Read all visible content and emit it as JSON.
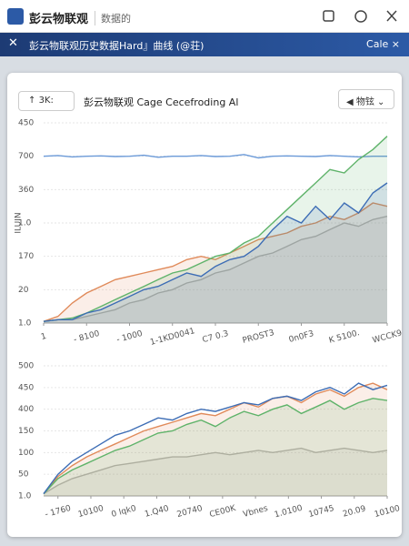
{
  "topbar": {
    "app_title": "彭云物联观",
    "tab": "数据的"
  },
  "header": {
    "title": "彭云物联观历史数据Hard』曲线 (@荘)",
    "action": "Cale ×"
  },
  "toolbar": {
    "button": "3K:",
    "title": "彭云物联观 Cage Cecefroding Al",
    "dropdown": "物铉"
  },
  "charts": [
    {
      "type": "line",
      "y_label": "ILUIN",
      "ylim": [
        0,
        6
      ],
      "xlim": [
        0,
        24
      ],
      "yticks": [
        {
          "value": 0,
          "label": "1.0"
        },
        {
          "value": 1,
          "label": "20"
        },
        {
          "value": 2,
          "label": "170"
        },
        {
          "value": 3,
          "label": "1.0"
        },
        {
          "value": 4,
          "label": "360"
        },
        {
          "value": 5,
          "label": "700"
        },
        {
          "value": 6,
          "label": "450"
        }
      ],
      "xticks": [
        {
          "value": 0,
          "label": "1"
        },
        {
          "value": 3,
          "label": "- 8100"
        },
        {
          "value": 6,
          "label": "- 1000"
        },
        {
          "value": 9,
          "label": "1-1KD0041"
        },
        {
          "value": 12,
          "label": "C7 0.3"
        },
        {
          "value": 15,
          "label": "PROST3"
        },
        {
          "value": 18,
          "label": "0n0F3"
        },
        {
          "value": 21,
          "label": "K 5100."
        },
        {
          "value": 24,
          "label": "WCCK9"
        }
      ],
      "x": [
        0,
        1,
        2,
        3,
        4,
        5,
        6,
        7,
        8,
        9,
        10,
        11,
        12,
        13,
        14,
        15,
        16,
        17,
        18,
        19,
        20,
        21,
        22,
        23,
        24
      ],
      "series": [
        {
          "color": "#6b9ad8",
          "area": false,
          "values": [
            5.0,
            5.02,
            4.98,
            5.0,
            5.01,
            4.99,
            5.0,
            5.03,
            4.97,
            5.0,
            5.0,
            5.02,
            4.99,
            5.0,
            5.05,
            4.95,
            5.0,
            5.01,
            5.0,
            4.99,
            5.02,
            5.0,
            4.98,
            5.0,
            5.0
          ]
        },
        {
          "color": "#b5b5b5",
          "area": true,
          "values": [
            0.05,
            0.1,
            0.1,
            0.2,
            0.3,
            0.4,
            0.6,
            0.7,
            0.9,
            1.0,
            1.2,
            1.3,
            1.5,
            1.6,
            1.8,
            2.0,
            2.1,
            2.3,
            2.5,
            2.6,
            2.8,
            3.0,
            2.9,
            3.1,
            3.2
          ]
        },
        {
          "color": "#e08a5a",
          "area": true,
          "values": [
            0.05,
            0.2,
            0.6,
            0.9,
            1.1,
            1.3,
            1.4,
            1.5,
            1.6,
            1.7,
            1.9,
            2.0,
            1.9,
            2.1,
            2.3,
            2.5,
            2.6,
            2.7,
            2.9,
            3.0,
            3.2,
            3.1,
            3.3,
            3.6,
            3.5
          ]
        },
        {
          "color": "#5fb36a",
          "area": true,
          "values": [
            0.05,
            0.1,
            0.15,
            0.3,
            0.5,
            0.7,
            0.9,
            1.1,
            1.3,
            1.5,
            1.6,
            1.8,
            2.0,
            2.1,
            2.4,
            2.6,
            3.0,
            3.4,
            3.8,
            4.2,
            4.6,
            4.5,
            4.9,
            5.2,
            5.6
          ]
        },
        {
          "color": "#3d6db5",
          "area": true,
          "values": [
            0.05,
            0.1,
            0.1,
            0.3,
            0.4,
            0.6,
            0.8,
            1.0,
            1.1,
            1.3,
            1.5,
            1.4,
            1.7,
            1.9,
            2.0,
            2.3,
            2.8,
            3.2,
            3.0,
            3.5,
            3.1,
            3.6,
            3.3,
            3.9,
            4.2
          ]
        }
      ]
    },
    {
      "type": "line",
      "ylim": [
        0,
        6
      ],
      "xlim": [
        0,
        24
      ],
      "yticks": [
        {
          "value": 0,
          "label": "1.0"
        },
        {
          "value": 1,
          "label": "50"
        },
        {
          "value": 2,
          "label": "100"
        },
        {
          "value": 3,
          "label": "150"
        },
        {
          "value": 4,
          "label": "400"
        },
        {
          "value": 5,
          "label": "450"
        },
        {
          "value": 6,
          "label": "500"
        }
      ],
      "xticks": [
        {
          "value": 1,
          "label": "- 1760"
        },
        {
          "value": 3.3,
          "label": "10100"
        },
        {
          "value": 5.6,
          "label": "0 lqk0"
        },
        {
          "value": 7.9,
          "label": "1.Q40"
        },
        {
          "value": 10.2,
          "label": "20740"
        },
        {
          "value": 12.5,
          "label": "CE00K"
        },
        {
          "value": 14.8,
          "label": "Vbnes"
        },
        {
          "value": 17.1,
          "label": "1.0100"
        },
        {
          "value": 19.4,
          "label": "10745"
        },
        {
          "value": 21.7,
          "label": "20.09"
        },
        {
          "value": 24,
          "label": "10100"
        }
      ],
      "x": [
        0,
        1,
        2,
        3,
        4,
        5,
        6,
        7,
        8,
        9,
        10,
        11,
        12,
        13,
        14,
        15,
        16,
        17,
        18,
        19,
        20,
        21,
        22,
        23,
        24
      ],
      "series": [
        {
          "color": "#b5b5b5",
          "area": true,
          "values": [
            0.1,
            0.5,
            0.8,
            1.0,
            1.2,
            1.4,
            1.5,
            1.6,
            1.7,
            1.8,
            1.8,
            1.9,
            2.0,
            1.9,
            2.0,
            2.1,
            2.0,
            2.1,
            2.2,
            2.0,
            2.1,
            2.2,
            2.1,
            2.0,
            2.1
          ]
        },
        {
          "color": "#e08a5a",
          "area": true,
          "values": [
            0.1,
            0.9,
            1.4,
            1.8,
            2.1,
            2.4,
            2.7,
            3.0,
            3.2,
            3.4,
            3.6,
            3.8,
            3.7,
            4.0,
            4.3,
            4.1,
            4.5,
            4.6,
            4.3,
            4.7,
            4.9,
            4.6,
            5.0,
            5.2,
            4.9
          ]
        },
        {
          "color": "#5fb36a",
          "area": true,
          "values": [
            0.1,
            0.8,
            1.2,
            1.5,
            1.8,
            2.1,
            2.3,
            2.6,
            2.9,
            3.0,
            3.3,
            3.5,
            3.2,
            3.6,
            3.9,
            3.7,
            4.0,
            4.2,
            3.8,
            4.1,
            4.4,
            4.0,
            4.3,
            4.5,
            4.4
          ]
        },
        {
          "color": "#3d6db5",
          "area": false,
          "values": [
            0.1,
            1.0,
            1.6,
            2.0,
            2.4,
            2.8,
            3.0,
            3.3,
            3.6,
            3.5,
            3.8,
            4.0,
            3.9,
            4.1,
            4.3,
            4.2,
            4.5,
            4.6,
            4.4,
            4.8,
            5.0,
            4.7,
            5.2,
            4.9,
            5.1
          ]
        }
      ]
    }
  ]
}
